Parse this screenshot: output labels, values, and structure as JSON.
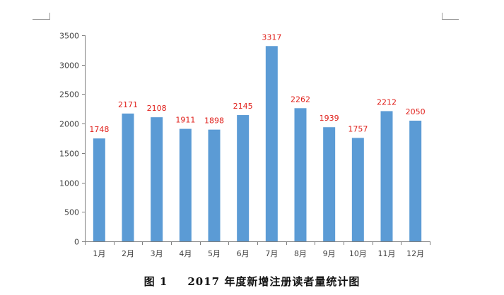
{
  "chart_data": {
    "type": "bar",
    "categories": [
      "1月",
      "2月",
      "3月",
      "4月",
      "5月",
      "6月",
      "7月",
      "8月",
      "9月",
      "10月",
      "11月",
      "12月"
    ],
    "values": [
      1748,
      2171,
      2108,
      1911,
      1898,
      2145,
      3317,
      2262,
      1939,
      1757,
      2212,
      2050
    ],
    "ylim": [
      0,
      3500
    ],
    "yticks": [
      0,
      500,
      1000,
      1500,
      2000,
      2500,
      3000,
      3500
    ],
    "grid": false,
    "legend": "none",
    "bar_color": "#5b9bd5",
    "label_color": "#e0201b"
  },
  "caption": {
    "number": "图 1",
    "text": "2017 年度新增注册读者量统计图"
  }
}
